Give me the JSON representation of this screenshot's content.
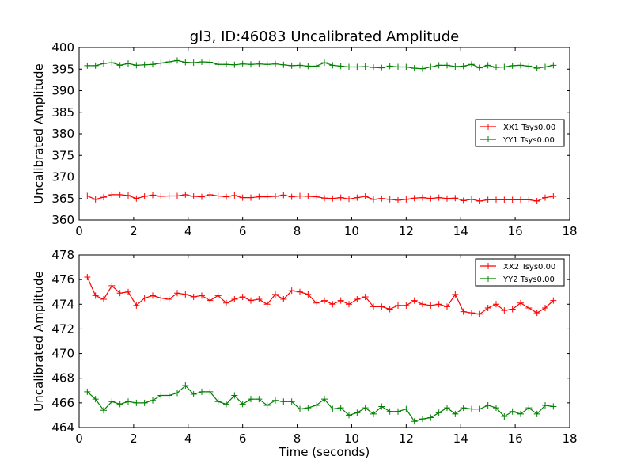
{
  "figure": {
    "title": "gl3, ID:46083 Uncalibrated Amplitude",
    "xlabel": "Time (seconds)"
  },
  "chart_data": [
    {
      "type": "line",
      "title": "gl3, ID:46083 Uncalibrated Amplitude",
      "xlabel": "",
      "ylabel": "Uncalibrated Amplitude",
      "xlim": [
        0,
        18
      ],
      "ylim": [
        360,
        400
      ],
      "xticks": [
        "0",
        "2",
        "4",
        "6",
        "8",
        "10",
        "12",
        "14",
        "16",
        "18"
      ],
      "yticks": [
        "360",
        "365",
        "370",
        "375",
        "380",
        "385",
        "390",
        "395",
        "400"
      ],
      "grid": false,
      "legend_position": "center-right",
      "x": [
        0.3,
        0.6,
        0.9,
        1.2,
        1.5,
        1.8,
        2.1,
        2.4,
        2.7,
        3.0,
        3.3,
        3.6,
        3.9,
        4.2,
        4.5,
        4.8,
        5.1,
        5.4,
        5.7,
        6.0,
        6.3,
        6.6,
        6.9,
        7.2,
        7.5,
        7.8,
        8.1,
        8.4,
        8.7,
        9.0,
        9.3,
        9.6,
        9.9,
        10.2,
        10.5,
        10.8,
        11.1,
        11.4,
        11.7,
        12.0,
        12.3,
        12.6,
        12.9,
        13.2,
        13.5,
        13.8,
        14.1,
        14.4,
        14.7,
        15.0,
        15.3,
        15.6,
        15.9,
        16.2,
        16.5,
        16.8,
        17.1,
        17.4
      ],
      "series": [
        {
          "name": "XX1 Tsys0.00",
          "color": "#ff0000",
          "values": [
            365.6,
            364.8,
            365.3,
            365.9,
            365.9,
            365.7,
            365.0,
            365.5,
            365.8,
            365.5,
            365.6,
            365.6,
            365.9,
            365.5,
            365.4,
            365.9,
            365.6,
            365.4,
            365.7,
            365.2,
            365.2,
            365.4,
            365.4,
            365.5,
            365.8,
            365.4,
            365.6,
            365.5,
            365.4,
            365.1,
            365.0,
            365.2,
            364.9,
            365.2,
            365.5,
            364.8,
            365.0,
            364.8,
            364.6,
            364.8,
            365.1,
            365.2,
            365.0,
            365.2,
            365.0,
            365.1,
            364.5,
            364.8,
            364.4,
            364.7,
            364.7,
            364.7,
            364.7,
            364.7,
            364.7,
            364.4,
            365.2,
            365.5
          ]
        },
        {
          "name": "YY1 Tsys0.00",
          "color": "#008000",
          "values": [
            395.8,
            395.8,
            396.3,
            396.5,
            395.9,
            396.3,
            395.9,
            396.0,
            396.1,
            396.4,
            396.7,
            397.0,
            396.6,
            396.5,
            396.7,
            396.6,
            396.1,
            396.1,
            396.0,
            396.2,
            396.1,
            396.2,
            396.1,
            396.2,
            396.0,
            395.8,
            395.9,
            395.7,
            395.7,
            396.5,
            395.9,
            395.7,
            395.5,
            395.5,
            395.6,
            395.4,
            395.3,
            395.7,
            395.5,
            395.5,
            395.2,
            395.1,
            395.5,
            395.9,
            395.9,
            395.6,
            395.7,
            396.1,
            395.3,
            395.9,
            395.4,
            395.5,
            395.8,
            395.9,
            395.7,
            395.2,
            395.5,
            395.9
          ]
        }
      ]
    },
    {
      "type": "line",
      "title": "",
      "xlabel": "Time (seconds)",
      "ylabel": "Uncalibrated Amplitude",
      "xlim": [
        0,
        18
      ],
      "ylim": [
        464,
        478
      ],
      "xticks": [
        "0",
        "2",
        "4",
        "6",
        "8",
        "10",
        "12",
        "14",
        "16",
        "18"
      ],
      "yticks": [
        "464",
        "466",
        "468",
        "470",
        "472",
        "474",
        "476",
        "478"
      ],
      "grid": false,
      "legend_position": "top-right",
      "x": [
        0.3,
        0.6,
        0.9,
        1.2,
        1.5,
        1.8,
        2.1,
        2.4,
        2.7,
        3.0,
        3.3,
        3.6,
        3.9,
        4.2,
        4.5,
        4.8,
        5.1,
        5.4,
        5.7,
        6.0,
        6.3,
        6.6,
        6.9,
        7.2,
        7.5,
        7.8,
        8.1,
        8.4,
        8.7,
        9.0,
        9.3,
        9.6,
        9.9,
        10.2,
        10.5,
        10.8,
        11.1,
        11.4,
        11.7,
        12.0,
        12.3,
        12.6,
        12.9,
        13.2,
        13.5,
        13.8,
        14.1,
        14.4,
        14.7,
        15.0,
        15.3,
        15.6,
        15.9,
        16.2,
        16.5,
        16.8,
        17.1,
        17.4
      ],
      "series": [
        {
          "name": "XX2 Tsys0.00",
          "color": "#ff0000",
          "values": [
            476.2,
            474.7,
            474.4,
            475.5,
            474.9,
            475.0,
            473.9,
            474.5,
            474.7,
            474.5,
            474.4,
            474.9,
            474.8,
            474.6,
            474.7,
            474.3,
            474.7,
            474.1,
            474.4,
            474.6,
            474.3,
            474.4,
            474.0,
            474.8,
            474.4,
            475.1,
            475.0,
            474.8,
            474.1,
            474.3,
            474.0,
            474.3,
            474.0,
            474.4,
            474.6,
            473.8,
            473.8,
            473.6,
            473.9,
            473.9,
            474.3,
            474.0,
            473.9,
            474.0,
            473.8,
            474.8,
            473.4,
            473.3,
            473.2,
            473.7,
            474.0,
            473.5,
            473.6,
            474.1,
            473.7,
            473.3,
            473.7,
            474.3
          ]
        },
        {
          "name": "YY2 Tsys0.00",
          "color": "#008000",
          "values": [
            466.9,
            466.3,
            465.4,
            466.1,
            465.9,
            466.1,
            466.0,
            466.0,
            466.2,
            466.6,
            466.6,
            466.8,
            467.4,
            466.7,
            466.9,
            466.9,
            466.1,
            465.9,
            466.6,
            465.9,
            466.3,
            466.3,
            465.8,
            466.2,
            466.1,
            466.1,
            465.5,
            465.6,
            465.8,
            466.3,
            465.5,
            465.6,
            465.0,
            465.2,
            465.6,
            465.1,
            465.7,
            465.3,
            465.3,
            465.5,
            464.5,
            464.7,
            464.8,
            465.2,
            465.6,
            465.1,
            465.6,
            465.5,
            465.5,
            465.8,
            465.6,
            464.9,
            465.3,
            465.1,
            465.6,
            465.1,
            465.8,
            465.7
          ]
        }
      ]
    }
  ]
}
